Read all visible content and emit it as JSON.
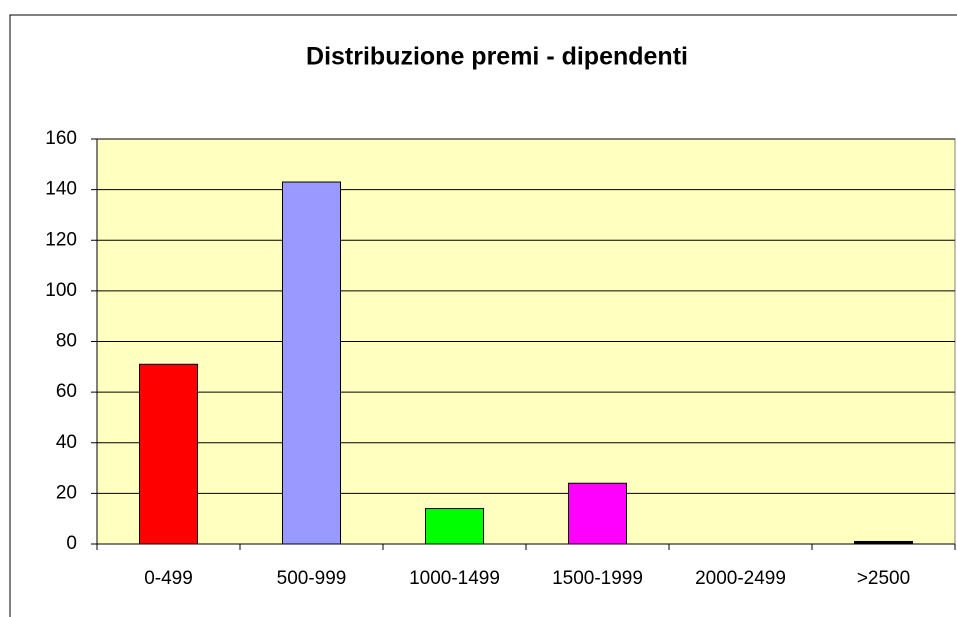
{
  "chart_data": {
    "type": "bar",
    "title": "Distribuzione premi - dipendenti",
    "categories": [
      "0-499",
      "500-999",
      "1000-1499",
      "1500-1999",
      "2000-2499",
      ">2500"
    ],
    "values": [
      71,
      143,
      14,
      24,
      0,
      1
    ],
    "colors": [
      "#ff0000",
      "#9999ff",
      "#00ff00",
      "#ff00ff",
      "#000080",
      "#000000"
    ],
    "ylim": [
      0,
      160
    ],
    "yticks": [
      0,
      20,
      40,
      60,
      80,
      100,
      120,
      140,
      160
    ],
    "grid": true
  }
}
